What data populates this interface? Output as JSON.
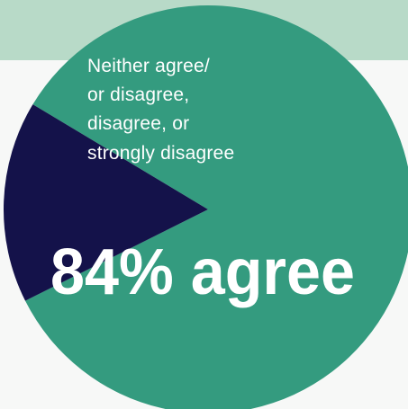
{
  "chart_data": {
    "type": "pie",
    "slices": [
      {
        "label": "84% agree",
        "value": 84,
        "color": "#349b7f"
      },
      {
        "label": "Neither agree/\nor disagree,\ndisagree, or\nstrongly disagree",
        "value": 16,
        "color": "#14124a"
      }
    ],
    "annotations": {
      "main": "84% agree",
      "minor_lines": [
        "Neither agree/",
        "or disagree,",
        "disagree, or",
        "strongly disagree"
      ]
    }
  },
  "colors": {
    "band": "#b8dac8",
    "background": "#f7f8f7",
    "text": "#ffffff"
  }
}
